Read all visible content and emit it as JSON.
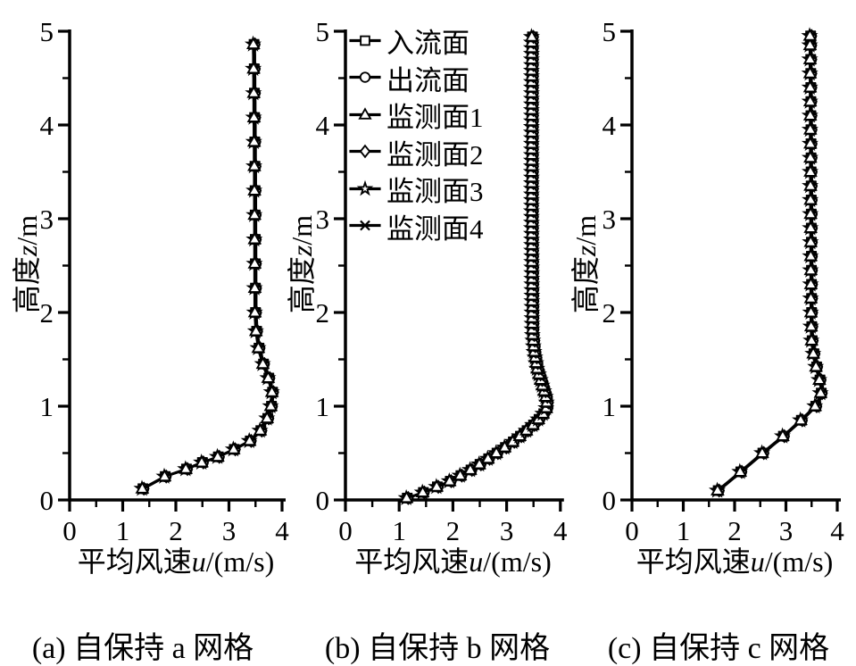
{
  "figure": {
    "background": "#ffffff",
    "ink_color": "#000000"
  },
  "legend": {
    "position": "top-left-inside-panel-b",
    "items": [
      {
        "label": "入流面",
        "marker": "square"
      },
      {
        "label": "出流面",
        "marker": "circle"
      },
      {
        "label": "监测面1",
        "marker": "triangle"
      },
      {
        "label": "监测面2",
        "marker": "diamond"
      },
      {
        "label": "监测面3",
        "marker": "star"
      },
      {
        "label": "监测面4",
        "marker": "x"
      }
    ]
  },
  "chart_data": [
    {
      "type": "line",
      "panel": "a",
      "caption": "(a) 自保持 a 网格",
      "xlabel_cn": "平均风速",
      "xlabel_var": "u",
      "xlabel_unit": "/(m/s)",
      "ylabel_cn": "高度",
      "ylabel_var": "z",
      "ylabel_unit": "/m",
      "xlim": [
        0,
        4
      ],
      "ylim": [
        0,
        5
      ],
      "x_ticks": [
        0,
        1,
        2,
        3,
        4
      ],
      "y_ticks": [
        0,
        1,
        2,
        3,
        4,
        5
      ],
      "x_minor_ticks": [
        0.5,
        1.5,
        2.5,
        3.5
      ],
      "y_minor_ticks": [
        0.5,
        1.5,
        2.5,
        3.5,
        4.5
      ],
      "series_labels": [
        "入流面",
        "出流面",
        "监测面1",
        "监测面2",
        "监测面3",
        "监测面4"
      ],
      "series_note": "all six series coincide on one wind-speed profile",
      "profile": {
        "z": [
          0.12,
          0.25,
          0.33,
          0.4,
          0.46,
          0.54,
          0.63,
          0.74,
          0.87,
          1.0,
          1.15,
          1.3,
          1.45,
          1.6,
          1.8,
          2.0,
          3.5,
          5.0
        ],
        "u": [
          1.38,
          1.8,
          2.2,
          2.5,
          2.8,
          3.1,
          3.4,
          3.6,
          3.73,
          3.8,
          3.82,
          3.75,
          3.65,
          3.57,
          3.52,
          3.5,
          3.49,
          3.47
        ]
      },
      "marker_z": [
        0.12,
        0.25,
        0.33,
        0.4,
        0.46,
        0.54,
        0.63,
        0.74,
        0.87,
        1.0,
        1.15,
        1.3,
        1.45,
        1.62,
        1.8,
        2.0,
        2.26,
        2.52,
        2.78,
        3.04,
        3.3,
        3.56,
        3.82,
        4.08,
        4.34,
        4.6,
        4.86
      ]
    },
    {
      "type": "line",
      "panel": "b",
      "caption": "(b) 自保持 b 网格",
      "xlabel_cn": "平均风速",
      "xlabel_var": "u",
      "xlabel_unit": "/(m/s)",
      "ylabel_cn": "高度",
      "ylabel_var": "z",
      "ylabel_unit": "/m",
      "xlim": [
        0,
        4
      ],
      "ylim": [
        0,
        5
      ],
      "x_ticks": [
        0,
        1,
        2,
        3,
        4
      ],
      "y_ticks": [
        0,
        1,
        2,
        3,
        4,
        5
      ],
      "x_minor_ticks": [
        0.5,
        1.5,
        2.5,
        3.5
      ],
      "y_minor_ticks": [
        0.5,
        1.5,
        2.5,
        3.5,
        4.5
      ],
      "series_labels": [
        "入流面",
        "出流面",
        "监测面1",
        "监测面2",
        "监测面3",
        "监测面4"
      ],
      "series_note": "all six series coincide on one wind-speed profile",
      "profile": {
        "z": [
          0.02,
          0.1,
          0.2,
          0.3,
          0.4,
          0.5,
          0.6,
          0.7,
          0.8,
          0.9,
          1.0,
          1.1,
          1.25,
          1.4,
          1.6,
          1.8,
          3.0,
          5.0
        ],
        "u": [
          1.15,
          1.55,
          1.95,
          2.28,
          2.56,
          2.82,
          3.08,
          3.3,
          3.5,
          3.67,
          3.77,
          3.74,
          3.66,
          3.58,
          3.52,
          3.49,
          3.48,
          3.48
        ]
      },
      "marker_z": [
        0.02,
        0.08,
        0.14,
        0.2,
        0.26,
        0.32,
        0.38,
        0.44,
        0.5,
        0.56,
        0.62,
        0.68,
        0.74,
        0.8,
        0.86,
        0.92,
        0.98,
        1.04,
        1.1,
        1.16,
        1.22,
        1.28,
        1.34,
        1.4,
        1.46,
        1.52,
        1.58,
        1.64,
        1.7,
        1.76,
        1.82,
        1.88,
        1.94,
        2.0,
        2.06,
        2.12,
        2.18,
        2.24,
        2.3,
        2.36,
        2.42,
        2.48,
        2.54,
        2.6,
        2.66,
        2.72,
        2.78,
        2.84,
        2.9,
        2.96,
        3.02,
        3.08,
        3.14,
        3.2,
        3.26,
        3.32,
        3.38,
        3.44,
        3.5,
        3.56,
        3.62,
        3.68,
        3.74,
        3.8,
        3.86,
        3.92,
        3.98,
        4.04,
        4.1,
        4.16,
        4.22,
        4.28,
        4.34,
        4.4,
        4.46,
        4.52,
        4.58,
        4.64,
        4.7,
        4.76,
        4.82,
        4.88,
        4.94
      ]
    },
    {
      "type": "line",
      "panel": "c",
      "caption": "(c) 自保持 c 网格",
      "xlabel_cn": "平均风速",
      "xlabel_var": "u",
      "xlabel_unit": "/(m/s)",
      "ylabel_cn": "高度",
      "ylabel_var": "z",
      "ylabel_unit": "/m",
      "xlim": [
        0,
        4
      ],
      "ylim": [
        0,
        5
      ],
      "x_ticks": [
        0,
        1,
        2,
        3,
        4
      ],
      "y_ticks": [
        0,
        1,
        2,
        3,
        4,
        5
      ],
      "x_minor_ticks": [
        0.5,
        1.5,
        2.5,
        3.5
      ],
      "y_minor_ticks": [
        0.5,
        1.5,
        2.5,
        3.5,
        4.5
      ],
      "series_labels": [
        "入流面",
        "出流面",
        "监测面1",
        "监测面2",
        "监测面3",
        "监测面4"
      ],
      "series_note": "all six series coincide on one wind-speed profile",
      "profile": {
        "z": [
          0.1,
          0.3,
          0.5,
          0.68,
          0.85,
          1.0,
          1.1,
          1.2,
          1.35,
          1.5,
          1.7,
          1.9,
          5.0
        ],
        "u": [
          1.68,
          2.12,
          2.55,
          2.95,
          3.3,
          3.58,
          3.68,
          3.7,
          3.63,
          3.56,
          3.51,
          3.5,
          3.48
        ]
      },
      "marker_z": [
        0.1,
        0.3,
        0.5,
        0.68,
        0.85,
        1.0,
        1.14,
        1.28,
        1.42,
        1.56,
        1.7,
        1.85,
        2.0,
        2.15,
        2.3,
        2.45,
        2.6,
        2.75,
        2.9,
        3.05,
        3.2,
        3.35,
        3.5,
        3.65,
        3.8,
        3.95,
        4.1,
        4.25,
        4.4,
        4.55,
        4.7,
        4.85,
        4.95
      ]
    }
  ]
}
